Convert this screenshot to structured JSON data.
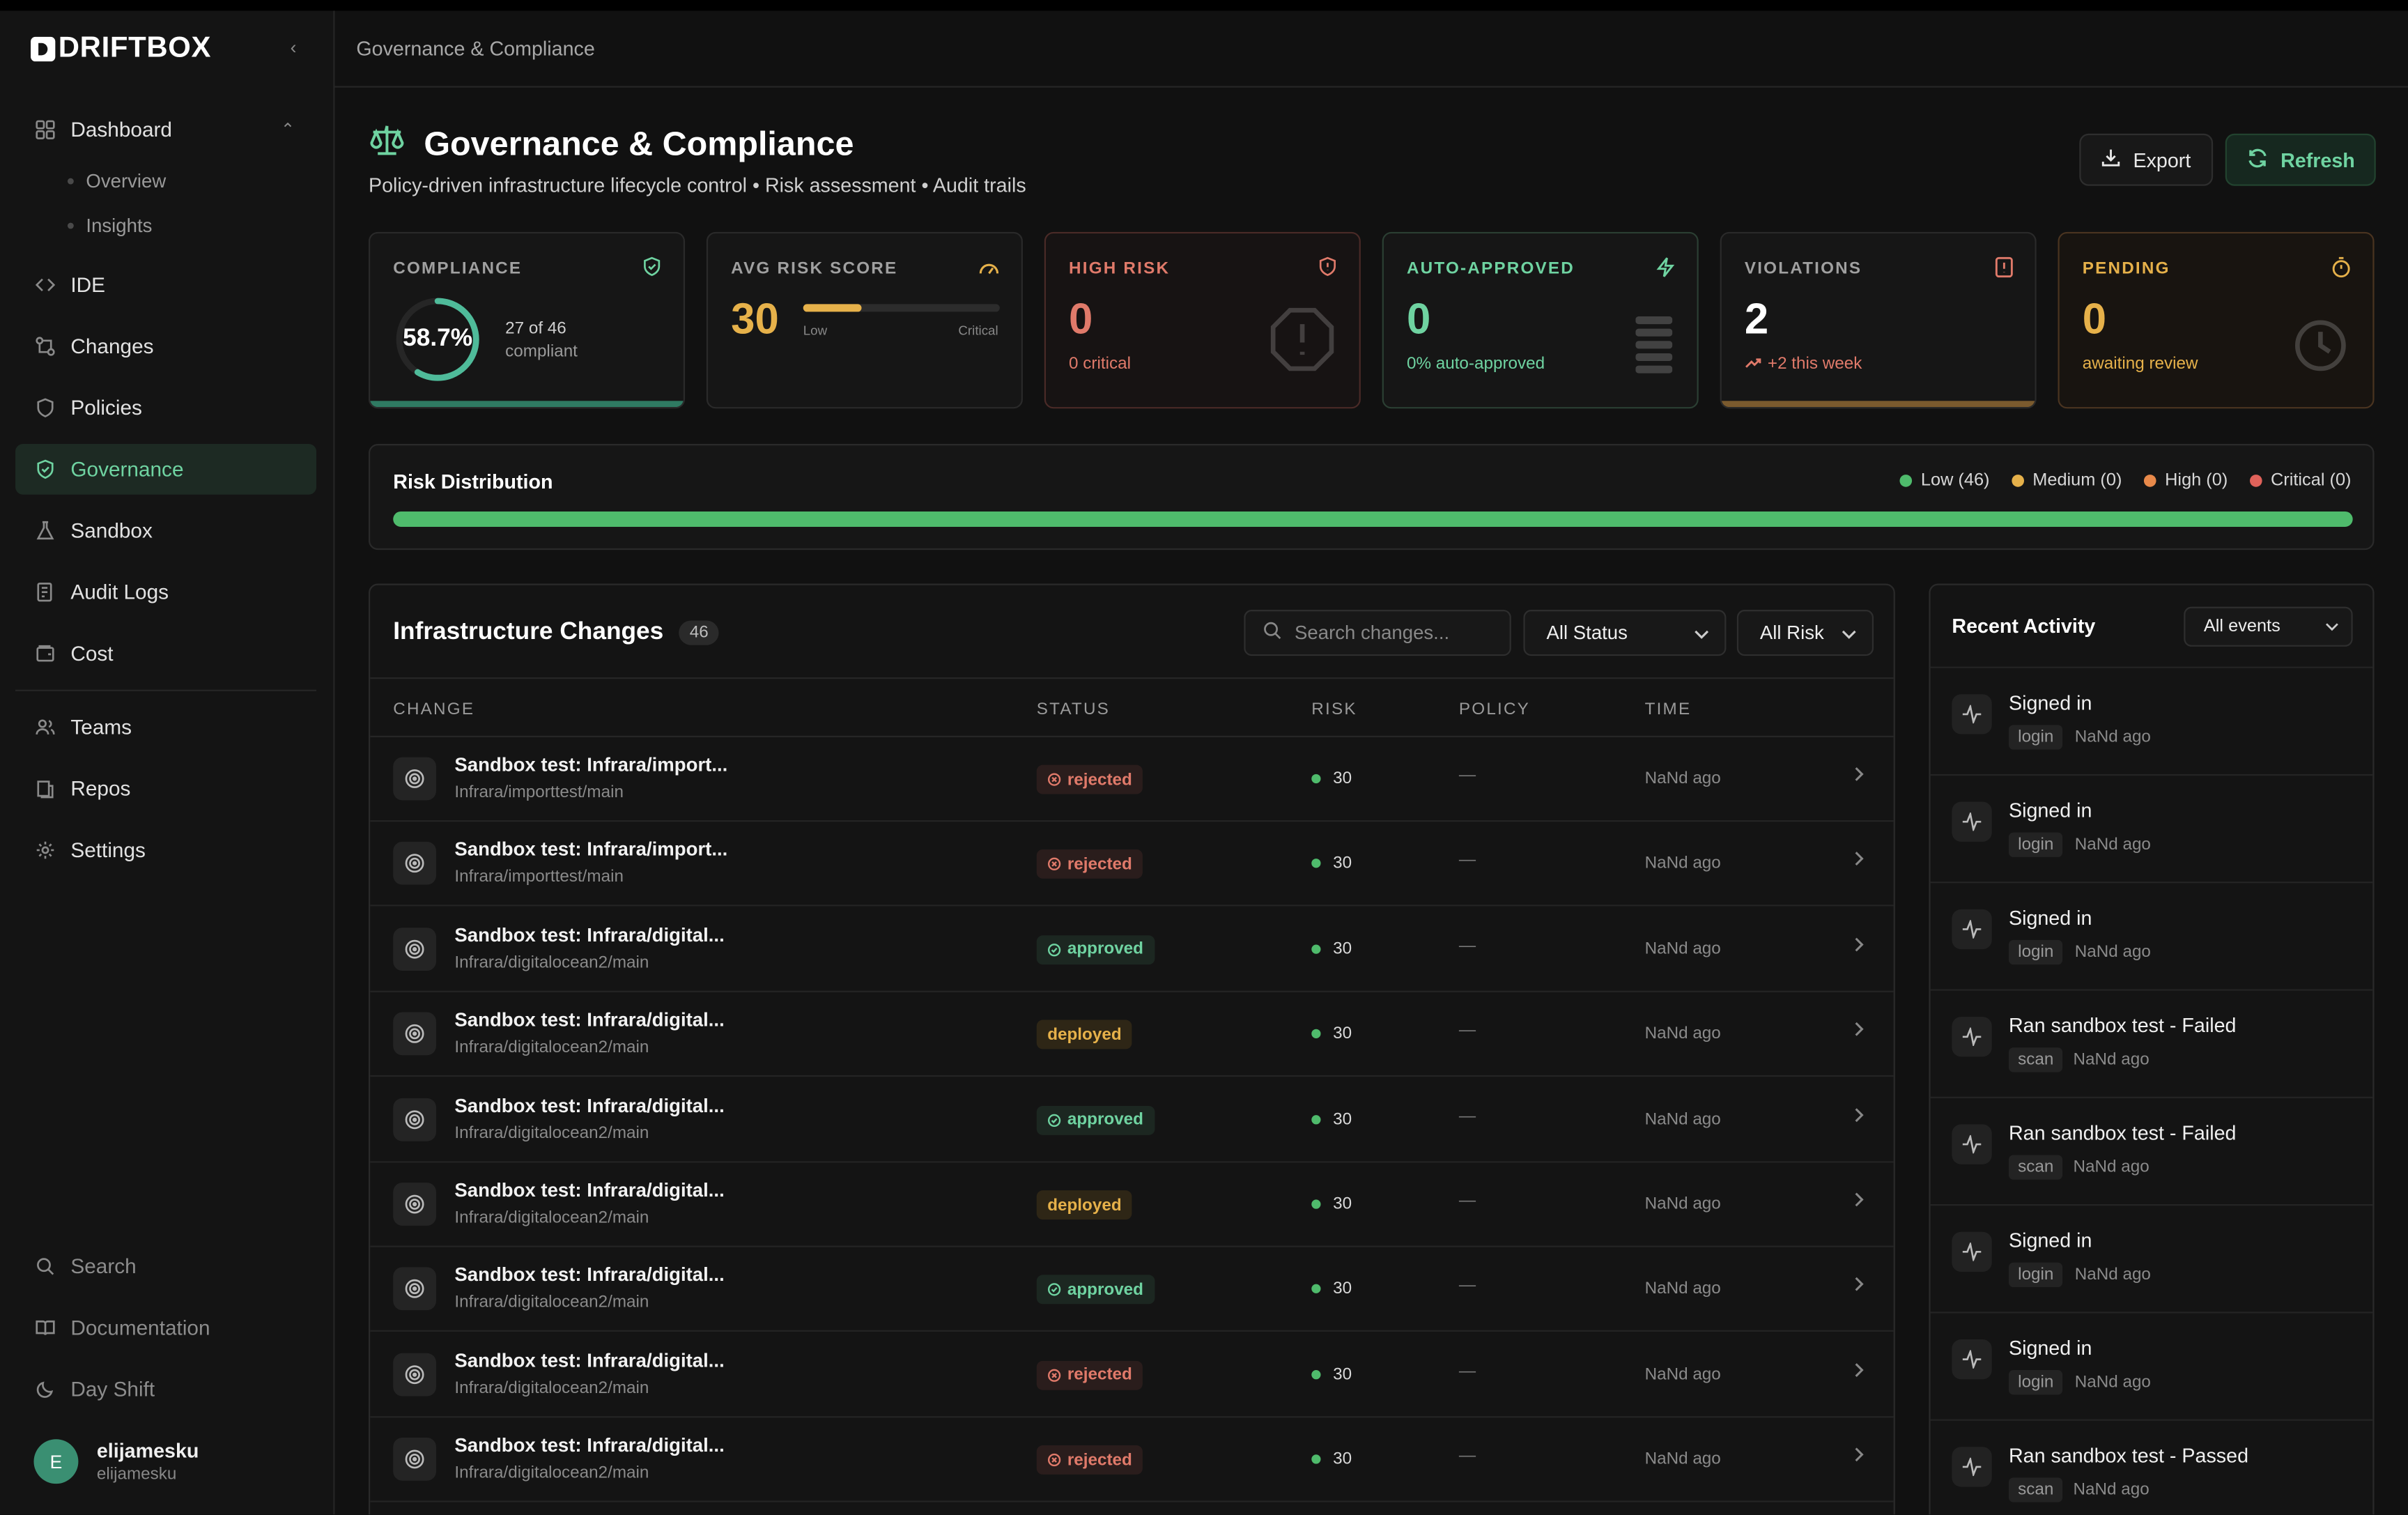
{
  "app": {
    "brand": "DRIFTBOX"
  },
  "sidebar": {
    "dashboard": "Dashboard",
    "sub": [
      "Overview",
      "Insights"
    ],
    "items": [
      {
        "label": "IDE",
        "icon": "code-icon"
      },
      {
        "label": "Changes",
        "icon": "git-compare-icon"
      },
      {
        "label": "Policies",
        "icon": "shield-icon"
      },
      {
        "label": "Governance",
        "icon": "shield-check-icon"
      },
      {
        "label": "Sandbox",
        "icon": "flask-icon"
      },
      {
        "label": "Audit Logs",
        "icon": "scroll-icon"
      },
      {
        "label": "Cost",
        "icon": "wallet-icon"
      },
      {
        "label": "Teams",
        "icon": "users-icon"
      },
      {
        "label": "Repos",
        "icon": "book-icon"
      },
      {
        "label": "Settings",
        "icon": "gear-icon"
      }
    ],
    "bottom": [
      "Search",
      "Documentation",
      "Day Shift"
    ],
    "user": {
      "initial": "E",
      "name": "elijamesku",
      "handle": "elijamesku"
    }
  },
  "header": {
    "breadcrumb": "Governance & Compliance",
    "title": "Governance & Compliance",
    "subtitle": "Policy-driven infrastructure lifecycle control • Risk assessment • Audit trails",
    "export": "Export",
    "refresh": "Refresh"
  },
  "stats": {
    "compliance": {
      "label": "COMPLIANCE",
      "value": "58.7%",
      "fraction": 0.587,
      "detail1": "27 of 46",
      "detail2": "compliant"
    },
    "avg_risk": {
      "label": "AVG RISK SCORE",
      "value": "30",
      "fraction": 0.3,
      "low": "Low",
      "critical": "Critical"
    },
    "high_risk": {
      "label": "HIGH RISK",
      "value": "0",
      "detail": "0 critical"
    },
    "auto_approved": {
      "label": "AUTO-APPROVED",
      "value": "0",
      "detail": "0% auto-approved"
    },
    "violations": {
      "label": "VIOLATIONS",
      "value": "2",
      "detail": "+2 this week"
    },
    "pending": {
      "label": "PENDING",
      "value": "0",
      "detail": "awaiting review"
    }
  },
  "risk_distribution": {
    "title": "Risk Distribution",
    "legend": [
      "Low (46)",
      "Medium (0)",
      "High (0)",
      "Critical (0)"
    ],
    "colors": {
      "low": "#4fbb6c",
      "medium": "#e6b14a",
      "high": "#e8894a",
      "critical": "#e0625a"
    }
  },
  "changes": {
    "title": "Infrastructure Changes",
    "count": "46",
    "search_placeholder": "Search changes...",
    "status_filter": "All Status",
    "risk_filter": "All Risk",
    "columns": [
      "CHANGE",
      "STATUS",
      "RISK",
      "POLICY",
      "TIME"
    ],
    "rows": [
      {
        "title": "Sandbox test: Infrara/import...",
        "path": "Infrara/importtest/main",
        "status": "rejected",
        "risk": "30",
        "policy": "—",
        "time": "NaNd ago"
      },
      {
        "title": "Sandbox test: Infrara/import...",
        "path": "Infrara/importtest/main",
        "status": "rejected",
        "risk": "30",
        "policy": "—",
        "time": "NaNd ago"
      },
      {
        "title": "Sandbox test: Infrara/digital...",
        "path": "Infrara/digitalocean2/main",
        "status": "approved",
        "risk": "30",
        "policy": "—",
        "time": "NaNd ago"
      },
      {
        "title": "Sandbox test: Infrara/digital...",
        "path": "Infrara/digitalocean2/main",
        "status": "deployed",
        "risk": "30",
        "policy": "—",
        "time": "NaNd ago"
      },
      {
        "title": "Sandbox test: Infrara/digital...",
        "path": "Infrara/digitalocean2/main",
        "status": "approved",
        "risk": "30",
        "policy": "—",
        "time": "NaNd ago"
      },
      {
        "title": "Sandbox test: Infrara/digital...",
        "path": "Infrara/digitalocean2/main",
        "status": "deployed",
        "risk": "30",
        "policy": "—",
        "time": "NaNd ago"
      },
      {
        "title": "Sandbox test: Infrara/digital...",
        "path": "Infrara/digitalocean2/main",
        "status": "approved",
        "risk": "30",
        "policy": "—",
        "time": "NaNd ago"
      },
      {
        "title": "Sandbox test: Infrara/digital...",
        "path": "Infrara/digitalocean2/main",
        "status": "rejected",
        "risk": "30",
        "policy": "—",
        "time": "NaNd ago"
      },
      {
        "title": "Sandbox test: Infrara/digital...",
        "path": "Infrara/digitalocean2/main",
        "status": "rejected",
        "risk": "30",
        "policy": "—",
        "time": "NaNd ago"
      }
    ]
  },
  "activity": {
    "title": "Recent Activity",
    "filter": "All events",
    "items": [
      {
        "title": "Signed in",
        "tag": "login",
        "time": "NaNd ago"
      },
      {
        "title": "Signed in",
        "tag": "login",
        "time": "NaNd ago"
      },
      {
        "title": "Signed in",
        "tag": "login",
        "time": "NaNd ago"
      },
      {
        "title": "Ran sandbox test - Failed",
        "tag": "scan",
        "time": "NaNd ago"
      },
      {
        "title": "Ran sandbox test - Failed",
        "tag": "scan",
        "time": "NaNd ago"
      },
      {
        "title": "Signed in",
        "tag": "login",
        "time": "NaNd ago"
      },
      {
        "title": "Signed in",
        "tag": "login",
        "time": "NaNd ago"
      },
      {
        "title": "Ran sandbox test - Passed",
        "tag": "scan",
        "time": "NaNd ago"
      }
    ]
  }
}
